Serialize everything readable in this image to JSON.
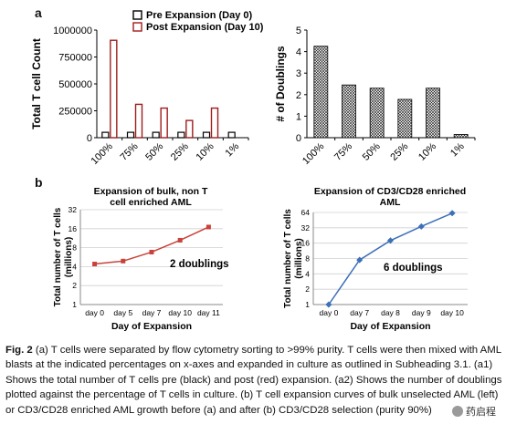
{
  "panels": {
    "a": "a",
    "b": "b"
  },
  "chart_data": [
    {
      "id": "a1",
      "type": "bar",
      "title": "",
      "categories": [
        "100%",
        "75%",
        "50%",
        "25%",
        "10%",
        "1%"
      ],
      "series": [
        {
          "name": "Pre Expansion (Day 0)",
          "values": [
            50000,
            50000,
            50000,
            50000,
            50000,
            50000
          ],
          "color": "#000000"
        },
        {
          "name": "Post Expansion (Day 10)",
          "values": [
            905000,
            310000,
            275000,
            160000,
            275000,
            0
          ],
          "color": "#a01c1c"
        }
      ],
      "ylabel": "Total T cell Count",
      "xlabel": "",
      "ylim": [
        0,
        1000000
      ],
      "yticks": [
        "0",
        "250000",
        "500000",
        "750000",
        "1000000"
      ],
      "legend": "top-left"
    },
    {
      "id": "a2",
      "type": "bar",
      "title": "",
      "categories": [
        "100%",
        "75%",
        "50%",
        "25%",
        "10%",
        "1%"
      ],
      "values": [
        4.25,
        2.45,
        2.3,
        1.78,
        2.3,
        0.15
      ],
      "ylabel": "# of Doublings",
      "xlabel": "",
      "ylim": [
        0,
        5
      ],
      "yticks": [
        "0",
        "1",
        "2",
        "3",
        "4",
        "5"
      ],
      "pattern": "hatched"
    },
    {
      "id": "b1",
      "type": "line",
      "title": "Expansion of bulk, non T cell enriched AML",
      "categories": [
        "day 0",
        "day 5",
        "day 7",
        "day 10",
        "day 11"
      ],
      "values": [
        4.4,
        4.9,
        6.8,
        10.5,
        17
      ],
      "ylabel": "Total number of T cells (millions)",
      "xlabel": "Day of Expansion",
      "ylim": [
        1,
        32
      ],
      "scale": "log2",
      "yticks": [
        "1",
        "2",
        "4",
        "8",
        "16",
        "32"
      ],
      "annotation": "2 doublings",
      "color": "#c8423a"
    },
    {
      "id": "b2",
      "type": "line",
      "title": "Expansion of CD3/CD28 enriched AML",
      "categories": [
        "day 0",
        "day 7",
        "day 8",
        "day 9",
        "day 10"
      ],
      "values": [
        1,
        7.5,
        18,
        34,
        62
      ],
      "ylabel": "Total number of T cells (millions)",
      "xlabel": "Day of Expansion",
      "ylim": [
        1,
        64
      ],
      "scale": "log2",
      "yticks": [
        "1",
        "2",
        "4",
        "8",
        "16",
        "32",
        "64"
      ],
      "annotation": "6 doublings",
      "color": "#3c70b8"
    }
  ],
  "caption": {
    "lead": "Fig. 2",
    "text": " (a) T cells were separated by flow cytometry sorting to >99% purity. T cells were then mixed with AML blasts at the indicated percentages on x-axes and expanded in culture as outlined in Subheading 3.1. (a1) Shows the total number of T cells pre (black) and post (red) expansion. (a2) Shows the number of doublings plotted against the percentage of T cells in culture. (b) T cell expansion curves of bulk unselected AML (left) or CD3/CD28 enriched AML growth before (a) and after (b) CD3/CD28 selection (purity 90%)"
  },
  "watermark": "药启程"
}
